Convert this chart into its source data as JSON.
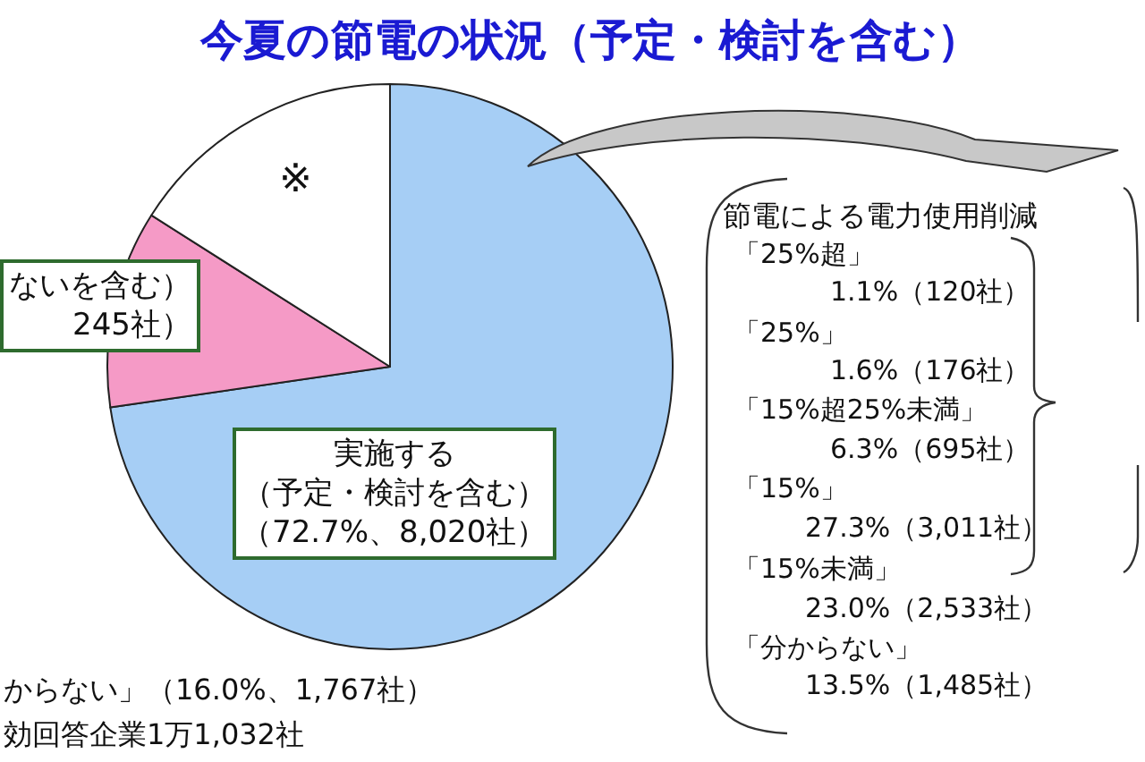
{
  "chart_data": {
    "type": "pie",
    "title": "今夏の節電の状況（予定・検討を含む）",
    "categories": [
      "実施する（予定・検討を含む）（72.7%、8,020社）",
      "ないを含む）245社）",
      "※"
    ],
    "values": [
      72.7,
      11.3,
      16.0
    ],
    "colors": [
      "#a6cef5",
      "#f59ac6",
      "#ffffff"
    ],
    "legend": false,
    "annotations": [
      "からない」（16.0%、1,767社）",
      "効回答企業1万1,032社",
      "節電による電力使用削減",
      "「25%超」",
      "1.1%（120社）",
      "「25%」",
      "1.6%（176社）",
      "「15%超25%未満」",
      "6.3%（695社）",
      "「15%」",
      "27.3%（3,011社）",
      "「15%未満」",
      "23.0%（2,533社）",
      "「分からない」",
      "13.5%（1,485社）"
    ]
  }
}
